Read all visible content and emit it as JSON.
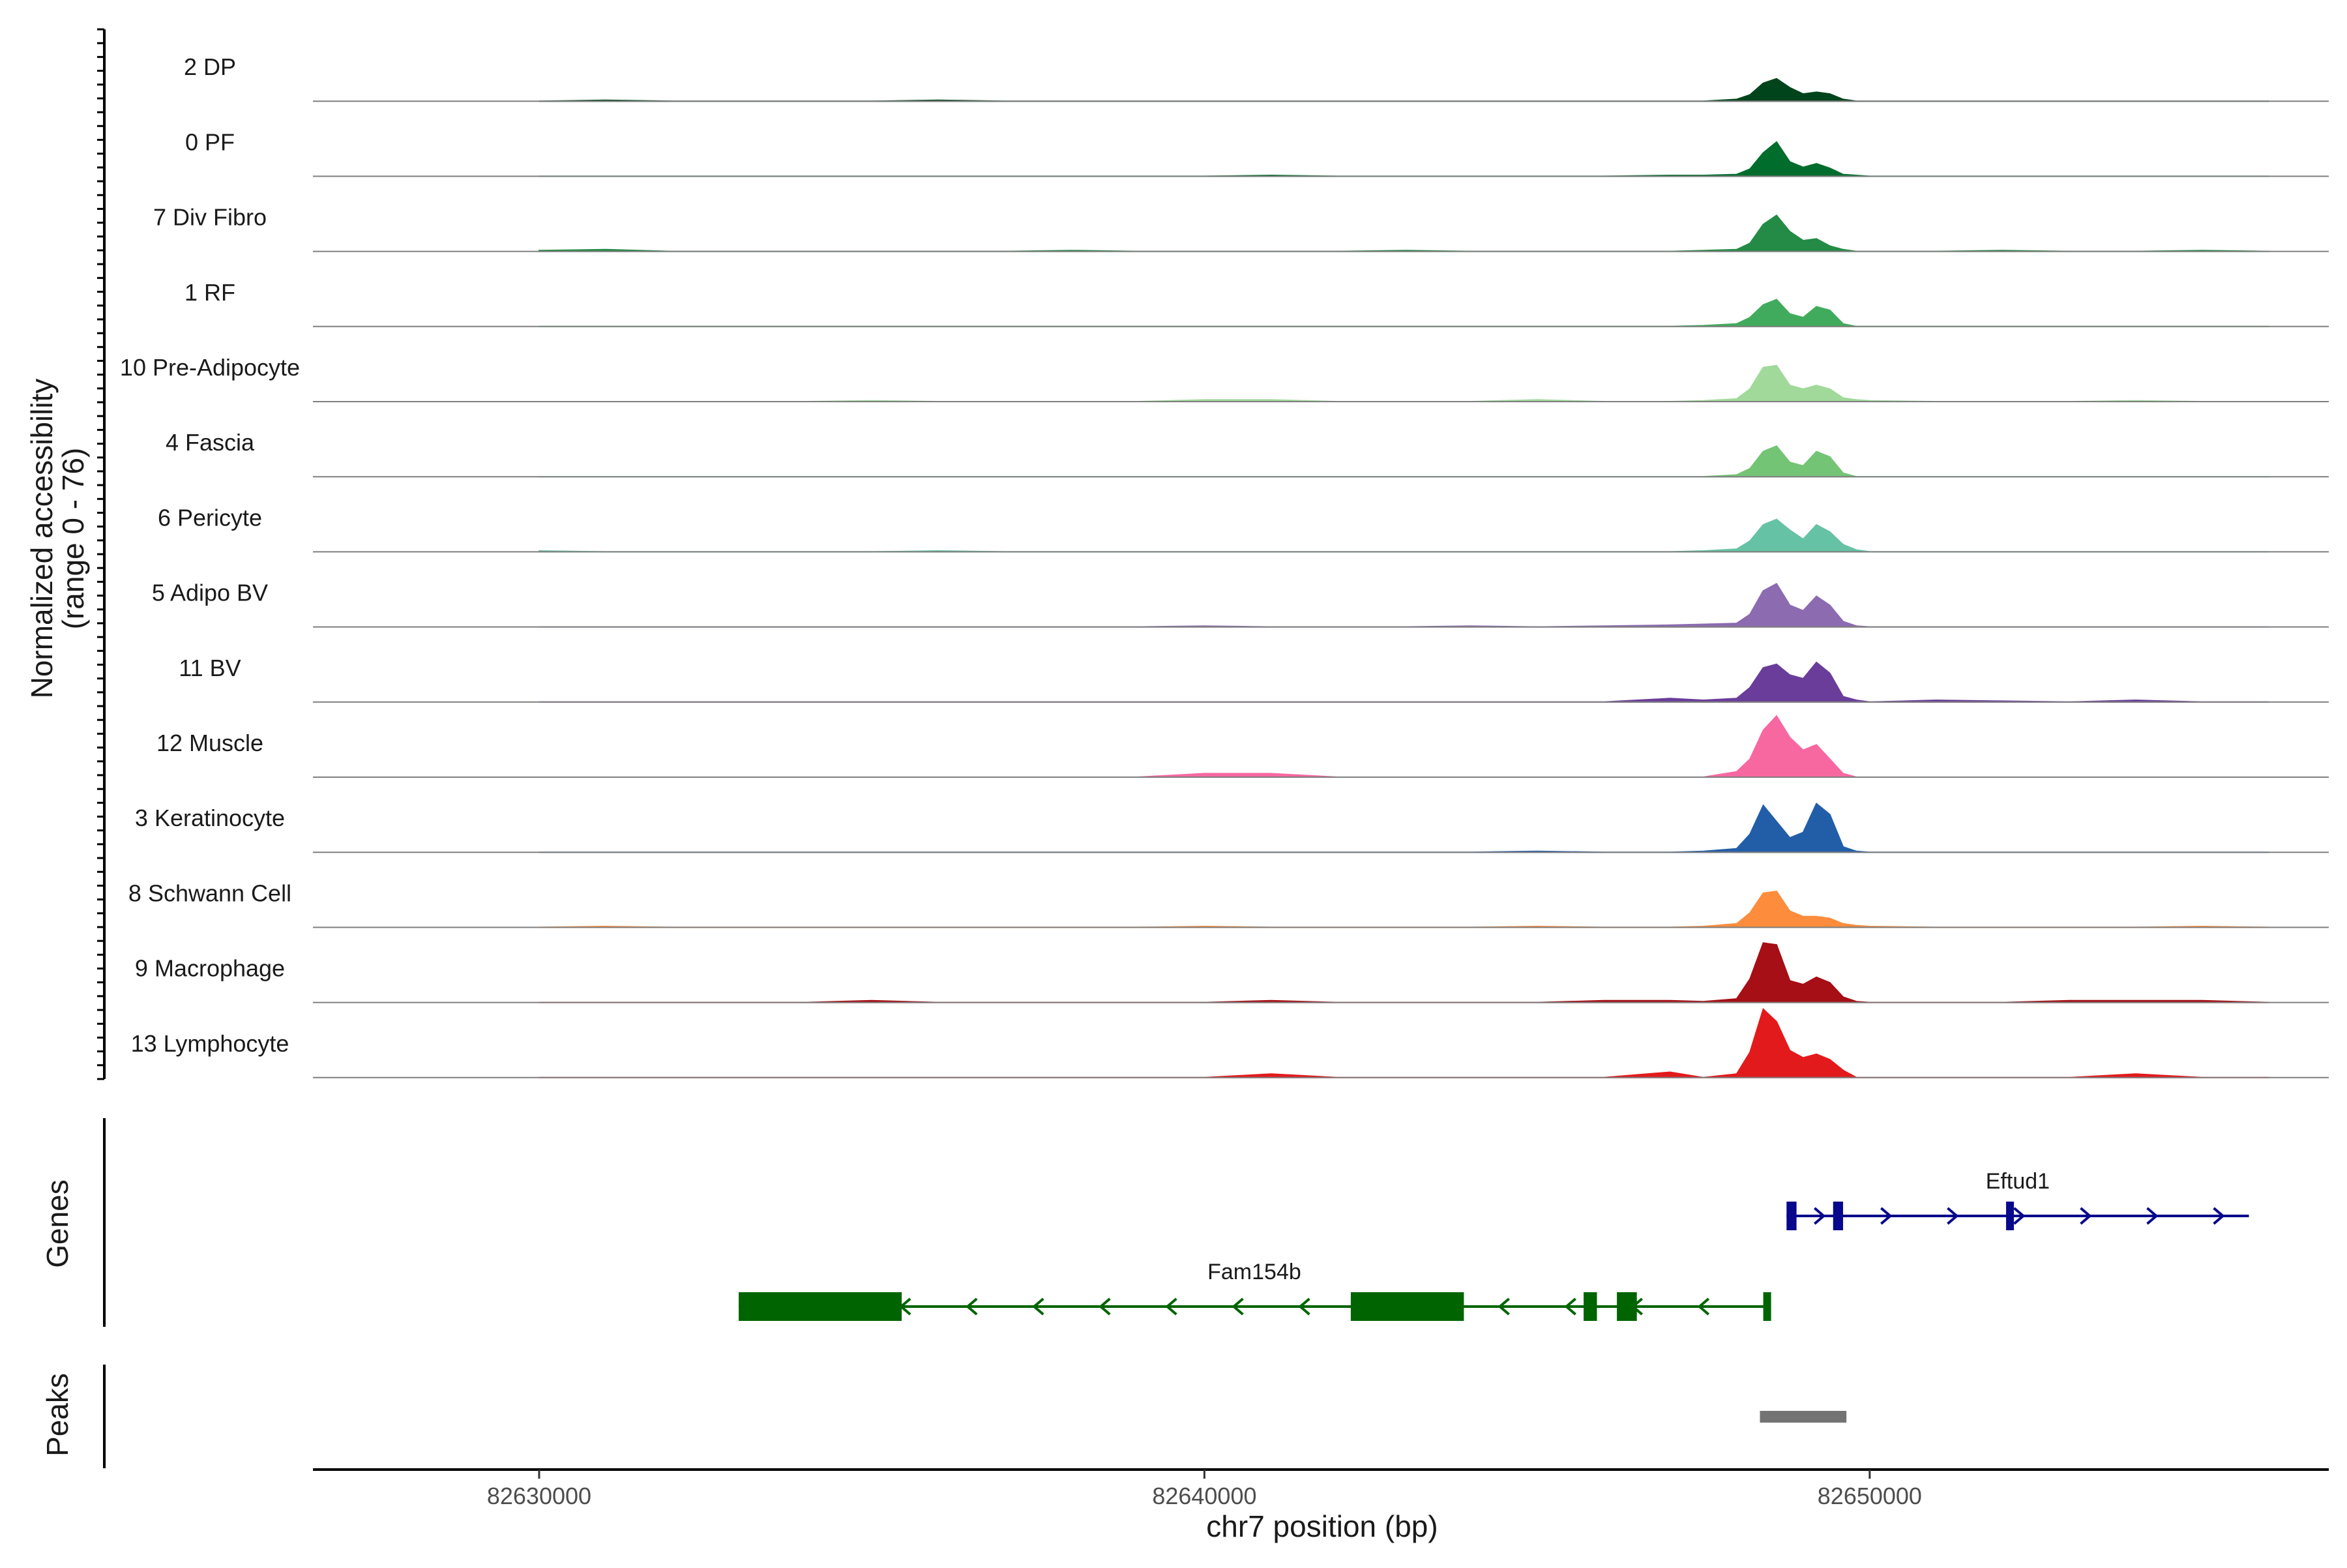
{
  "chart_data": {
    "type": "area",
    "chromosome": "chr7",
    "xlabel": "chr7 position (bp)",
    "ylabel": "Normalized accessibility",
    "ylabel_sub": "(range 0 - 76)",
    "ylim": [
      0,
      76
    ],
    "xlim": [
      82626600,
      82656900
    ],
    "xticks": [
      82630000,
      82640000,
      82650000
    ],
    "xtick_labels": [
      "82630000",
      "82640000",
      "82650000"
    ],
    "positions": [
      82630000,
      82631000,
      82632000,
      82633000,
      82634000,
      82635000,
      82636000,
      82637000,
      82638000,
      82639000,
      82640000,
      82641000,
      82642000,
      82643000,
      82644000,
      82645000,
      82646000,
      82647000,
      82647500,
      82648000,
      82648200,
      82648400,
      82648600,
      82648800,
      82649000,
      82649200,
      82649400,
      82649600,
      82649800,
      82650000,
      82651000,
      82652000,
      82653000,
      82654000,
      82655000,
      82656000
    ],
    "series": [
      {
        "name": "2 DP",
        "color": "#00441b",
        "values": [
          0,
          1,
          0,
          0,
          0,
          0,
          1,
          0,
          0,
          0,
          0,
          0,
          0,
          0,
          0,
          0,
          0,
          0,
          0,
          2,
          7,
          20,
          25,
          15,
          8,
          10,
          8,
          2,
          0,
          0,
          0,
          0,
          0,
          0,
          0,
          0
        ]
      },
      {
        "name": "0 PF",
        "color": "#006d2c",
        "values": [
          0,
          0,
          0,
          0,
          0,
          0,
          0,
          0,
          0,
          0,
          0,
          1,
          0,
          0,
          0,
          0,
          0,
          1,
          1,
          2,
          8,
          26,
          38,
          16,
          10,
          14,
          9,
          2,
          1,
          0,
          0,
          0,
          0,
          0,
          0,
          0
        ]
      },
      {
        "name": "7 Div Fibro",
        "color": "#238b45",
        "values": [
          1,
          2,
          0,
          0,
          0,
          0,
          0,
          0,
          1,
          0,
          0,
          0,
          0,
          1,
          0,
          0,
          0,
          0,
          1,
          2,
          9,
          30,
          40,
          22,
          12,
          14,
          6,
          2,
          0,
          0,
          0,
          1,
          0,
          0,
          1,
          0
        ]
      },
      {
        "name": "1 RF",
        "color": "#41ab5d",
        "values": [
          0,
          0,
          0,
          0,
          0,
          0,
          0,
          0,
          0,
          0,
          0,
          0,
          0,
          0,
          0,
          0,
          0,
          0,
          1,
          3,
          10,
          24,
          30,
          14,
          10,
          22,
          18,
          3,
          0,
          0,
          0,
          0,
          0,
          0,
          0,
          0
        ]
      },
      {
        "name": "10 Pre-Adipocyte",
        "color": "#a1d99b",
        "values": [
          0,
          0,
          0,
          0,
          0,
          1,
          0,
          0,
          0,
          0,
          2,
          2,
          0,
          0,
          0,
          2,
          0,
          0,
          1,
          3,
          14,
          38,
          40,
          18,
          14,
          18,
          14,
          4,
          2,
          1,
          0,
          0,
          0,
          1,
          0,
          0
        ]
      },
      {
        "name": "4 Fascia",
        "color": "#74c476",
        "values": [
          0,
          0,
          0,
          0,
          0,
          0,
          0,
          0,
          0,
          0,
          0,
          0,
          0,
          0,
          0,
          0,
          0,
          0,
          0,
          2,
          9,
          28,
          34,
          16,
          12,
          28,
          22,
          4,
          0,
          0,
          0,
          0,
          0,
          0,
          0,
          0
        ]
      },
      {
        "name": "6 Pericyte",
        "color": "#66c2a4",
        "values": [
          1,
          0,
          0,
          0,
          0,
          0,
          1,
          0,
          0,
          0,
          0,
          0,
          0,
          0,
          0,
          0,
          0,
          0,
          1,
          3,
          12,
          30,
          36,
          24,
          14,
          30,
          22,
          8,
          2,
          0,
          0,
          0,
          0,
          0,
          0,
          0
        ]
      },
      {
        "name": "5 Adipo BV",
        "color": "#8c6bb1",
        "values": [
          0,
          0,
          0,
          0,
          0,
          0,
          0,
          0,
          0,
          0,
          1,
          0,
          0,
          0,
          1,
          0,
          1,
          2,
          3,
          4,
          14,
          40,
          48,
          24,
          18,
          34,
          24,
          6,
          1,
          0,
          0,
          0,
          0,
          0,
          0,
          0
        ]
      },
      {
        "name": "11 BV",
        "color": "#6a3d9a",
        "values": [
          0,
          0,
          0,
          0,
          0,
          0,
          0,
          0,
          0,
          0,
          0,
          0,
          0,
          0,
          0,
          0,
          0,
          4,
          2,
          4,
          16,
          38,
          42,
          30,
          26,
          44,
          32,
          6,
          2,
          0,
          2,
          1,
          0,
          2,
          0,
          0
        ]
      },
      {
        "name": "12 Muscle",
        "color": "#f768a1",
        "values": [
          0,
          0,
          0,
          0,
          0,
          0,
          0,
          0,
          0,
          0,
          4,
          4,
          0,
          0,
          0,
          0,
          0,
          0,
          0,
          6,
          20,
          52,
          68,
          44,
          30,
          36,
          20,
          4,
          0,
          0,
          0,
          0,
          0,
          0,
          0,
          0
        ]
      },
      {
        "name": "3 Keratinocyte",
        "color": "#225ea8",
        "values": [
          0,
          0,
          0,
          0,
          0,
          0,
          0,
          0,
          0,
          0,
          0,
          0,
          0,
          0,
          0,
          1,
          0,
          0,
          1,
          4,
          20,
          52,
          34,
          16,
          22,
          54,
          42,
          6,
          1,
          0,
          0,
          0,
          0,
          0,
          0,
          0
        ]
      },
      {
        "name": "8 Schwann Cell",
        "color": "#fd8d3c",
        "values": [
          0,
          1,
          0,
          0,
          0,
          0,
          0,
          0,
          0,
          0,
          1,
          0,
          0,
          0,
          0,
          1,
          0,
          0,
          1,
          4,
          16,
          38,
          40,
          18,
          12,
          12,
          10,
          4,
          2,
          1,
          0,
          0,
          0,
          0,
          1,
          0
        ]
      },
      {
        "name": "9 Macrophage",
        "color": "#a50f15",
        "values": [
          0,
          0,
          0,
          0,
          0,
          2,
          0,
          0,
          0,
          0,
          0,
          2,
          0,
          0,
          0,
          0,
          2,
          2,
          1,
          4,
          26,
          66,
          64,
          24,
          20,
          28,
          22,
          6,
          1,
          0,
          0,
          0,
          2,
          2,
          2,
          0
        ]
      },
      {
        "name": "13 Lymphocyte",
        "color": "#e31a1c",
        "values": [
          0,
          0,
          0,
          0,
          0,
          0,
          0,
          0,
          0,
          0,
          0,
          4,
          0,
          0,
          0,
          0,
          0,
          6,
          0,
          4,
          28,
          76,
          62,
          30,
          22,
          26,
          20,
          8,
          0,
          0,
          0,
          0,
          0,
          4,
          0,
          0
        ]
      }
    ],
    "genes_panel_title": "Genes",
    "peaks_panel_title": "Peaks",
    "genes": [
      {
        "name": "Eftud1",
        "strand": "+",
        "color": "#08088c",
        "start": 82648750,
        "end": 82655700,
        "exons": [
          [
            82648750,
            82648900
          ],
          [
            82649450,
            82649600
          ],
          [
            82652050,
            82652150
          ]
        ]
      },
      {
        "name": "Fam154b",
        "strand": "-",
        "color": "#006400",
        "start": 82633000,
        "end": 82648500,
        "exons": [
          [
            82633000,
            82635450
          ],
          [
            82642200,
            82643900
          ],
          [
            82645700,
            82645900
          ],
          [
            82646200,
            82646500
          ],
          [
            82648400,
            82648500
          ]
        ]
      }
    ],
    "peaks": [
      [
        82648350,
        82649650
      ]
    ]
  }
}
